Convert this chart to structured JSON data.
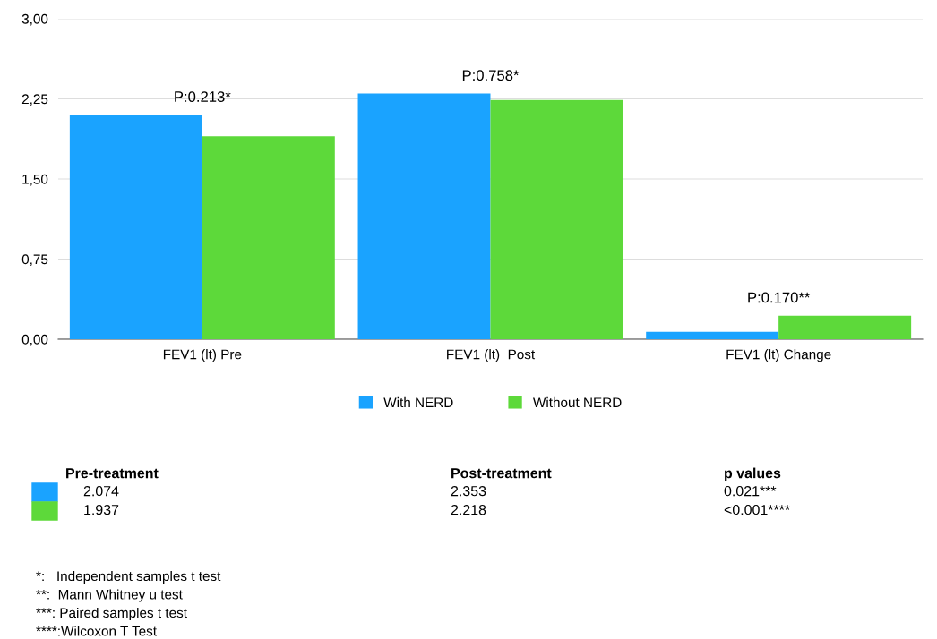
{
  "chart_data": {
    "type": "bar",
    "categories": [
      "FEV1 (lt) Pre",
      "FEV1 (lt)  Post",
      "FEV1 (lt) Change"
    ],
    "series": [
      {
        "name": "With NERD",
        "color": "#1aa3ff",
        "values": [
          2.1,
          2.3,
          0.07
        ]
      },
      {
        "name": "Without NERD",
        "color": "#5dd93a",
        "values": [
          1.9,
          2.24,
          0.22
        ]
      }
    ],
    "ylim": [
      0,
      3
    ],
    "yticks": [
      {
        "value": 0,
        "label": "0,00"
      },
      {
        "value": 0.75,
        "label": "0,75"
      },
      {
        "value": 1.5,
        "label": "1,50"
      },
      {
        "value": 2.25,
        "label": "2,25"
      },
      {
        "value": 3,
        "label": "3,00"
      }
    ],
    "grid": "y",
    "legend": "bottom",
    "annotations": [
      {
        "text": "P:0.213*",
        "x": "FEV1 (lt) Pre",
        "y": 2.1
      },
      {
        "text": "P:0.758*",
        "x": "FEV1 (lt)  Post",
        "y": 2.3
      },
      {
        "text": "P:0.170**",
        "x": "FEV1 (lt) Change",
        "y": 0.22
      },
      "Pre-treatment",
      "Post-treatment",
      "p values",
      "2.074",
      "2.353",
      "0.021***",
      "1.937",
      "2.218",
      "<0.001****",
      "*:   Independent samples t test",
      "**:  Mann Whitney u test",
      "***: Paired samples t test",
      "****:Wilcoxon T Test"
    ]
  }
}
